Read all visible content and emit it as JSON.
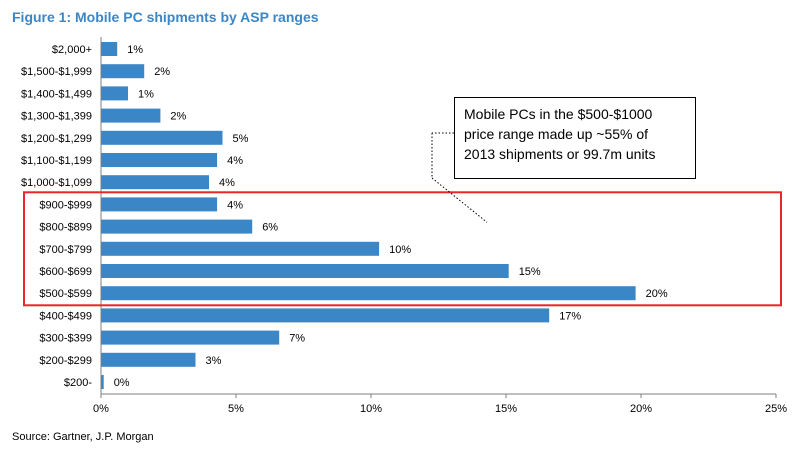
{
  "figure": {
    "title": "Figure 1: Mobile PC shipments by ASP ranges",
    "source": "Source: Gartner, J.P. Morgan",
    "callout_lines": [
      "Mobile PCs in the $500-$1000",
      "price range made up ~55%  of",
      "2013 shipments or 99.7m units"
    ]
  },
  "colors": {
    "bar": "#3B86C6",
    "title": "#3B86C6",
    "highlight": "#E8262B"
  },
  "chart_data": {
    "type": "bar",
    "orientation": "horizontal",
    "title": "Figure 1: Mobile PC shipments by ASP ranges",
    "xlabel": "",
    "ylabel": "",
    "categories": [
      "$2,000+",
      "$1,500-$1,999",
      "$1,400-$1,499",
      "$1,300-$1,399",
      "$1,200-$1,299",
      "$1,100-$1,199",
      "$1,000-$1,099",
      "$900-$999",
      "$800-$899",
      "$700-$799",
      "$600-$699",
      "$500-$599",
      "$400-$499",
      "$300-$399",
      "$200-$299",
      "$200-"
    ],
    "values": [
      0.6,
      1.6,
      1.0,
      2.2,
      4.5,
      4.3,
      4.0,
      4.3,
      5.6,
      10.3,
      15.1,
      19.8,
      16.6,
      6.6,
      3.5,
      0.1
    ],
    "value_labels": [
      "1%",
      "2%",
      "1%",
      "2%",
      "5%",
      "4%",
      "4%",
      "4%",
      "6%",
      "10%",
      "15%",
      "20%",
      "17%",
      "7%",
      "3%",
      "0%"
    ],
    "xlim": [
      0,
      25
    ],
    "x_ticks": [
      0,
      5,
      10,
      15,
      20,
      25
    ],
    "x_tick_labels": [
      "0%",
      "5%",
      "10%",
      "15%",
      "20%",
      "25%"
    ],
    "grid": false,
    "highlighted_categories": [
      "$900-$999",
      "$800-$899",
      "$700-$799",
      "$600-$699",
      "$500-$599"
    ]
  }
}
